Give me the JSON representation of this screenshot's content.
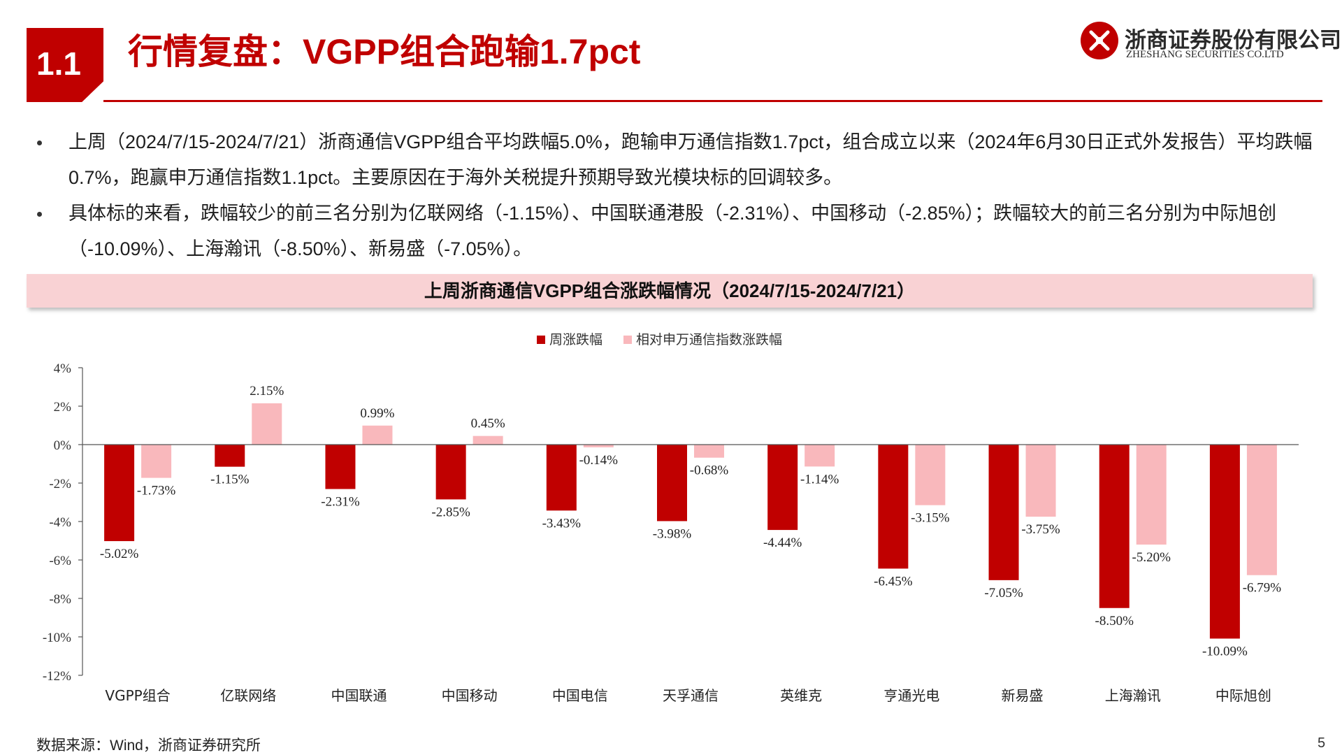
{
  "header": {
    "section_number": "1.1",
    "title": "行情复盘：VGPP组合跑输1.7pct",
    "logo_cn": "浙商证券股份有限公司",
    "logo_en": "ZHESHANG SECURITIES CO.LTD"
  },
  "bullets": [
    "上周（2024/7/15-2024/7/21）浙商通信VGPP组合平均跌幅5.0%，跑输申万通信指数1.7pct，组合成立以来（2024年6月30日正式外发报告）平均跌幅0.7%，跑赢申万通信指数1.1pct。主要原因在于海外关税提升预期导致光模块标的回调较多。",
    "具体标的来看，跌幅较少的前三名分别为亿联网络（-1.15%）、中国联通港股（-2.31%）、中国移动（-2.85%）；跌幅较大的前三名分别为中际旭创（-10.09%）、上海瀚讯（-8.50%）、新易盛（-7.05%）。"
  ],
  "chart_banner": "上周浙商通信VGPP组合涨跌幅情况（2024/7/15-2024/7/21）",
  "chart_data": {
    "type": "bar",
    "categories": [
      "VGPP组合",
      "亿联网络",
      "中国联通",
      "中国移动",
      "中国电信",
      "天孚通信",
      "英维克",
      "亨通光电",
      "新易盛",
      "上海瀚讯",
      "中际旭创"
    ],
    "series": [
      {
        "name": "周涨跌幅",
        "color": "#c00000",
        "values": [
          -5.02,
          -1.15,
          -2.31,
          -2.85,
          -3.43,
          -3.98,
          -4.44,
          -6.45,
          -7.05,
          -8.5,
          -10.09
        ],
        "labels": [
          "-5.02%",
          "-1.15%",
          "-2.31%",
          "-2.85%",
          "-3.43%",
          "-3.98%",
          "-4.44%",
          "-6.45%",
          "-7.05%",
          "-8.50%",
          "-10.09%"
        ]
      },
      {
        "name": "相对申万通信指数涨跌幅",
        "color": "#f9b8bc",
        "values": [
          -1.73,
          2.15,
          0.99,
          0.45,
          -0.14,
          -0.68,
          -1.14,
          -3.15,
          -3.75,
          -5.2,
          -6.79
        ],
        "labels": [
          "-1.73%",
          "2.15%",
          "0.99%",
          "0.45%",
          "-0.14%",
          "-0.68%",
          "-1.14%",
          "-3.15%",
          "-3.75%",
          "-5.20%",
          "-6.79%"
        ]
      }
    ],
    "ylim": [
      -12,
      4
    ],
    "yticks": [
      4,
      2,
      0,
      -2,
      -4,
      -6,
      -8,
      -10,
      -12
    ],
    "ytick_labels": [
      "4%",
      "2%",
      "0%",
      "-2%",
      "-4%",
      "-6%",
      "-8%",
      "-10%",
      "-12%"
    ],
    "legend": "top-center",
    "grid": false
  },
  "footer": {
    "source": "数据来源：Wind，浙商证券研究所",
    "page_number": "5"
  }
}
